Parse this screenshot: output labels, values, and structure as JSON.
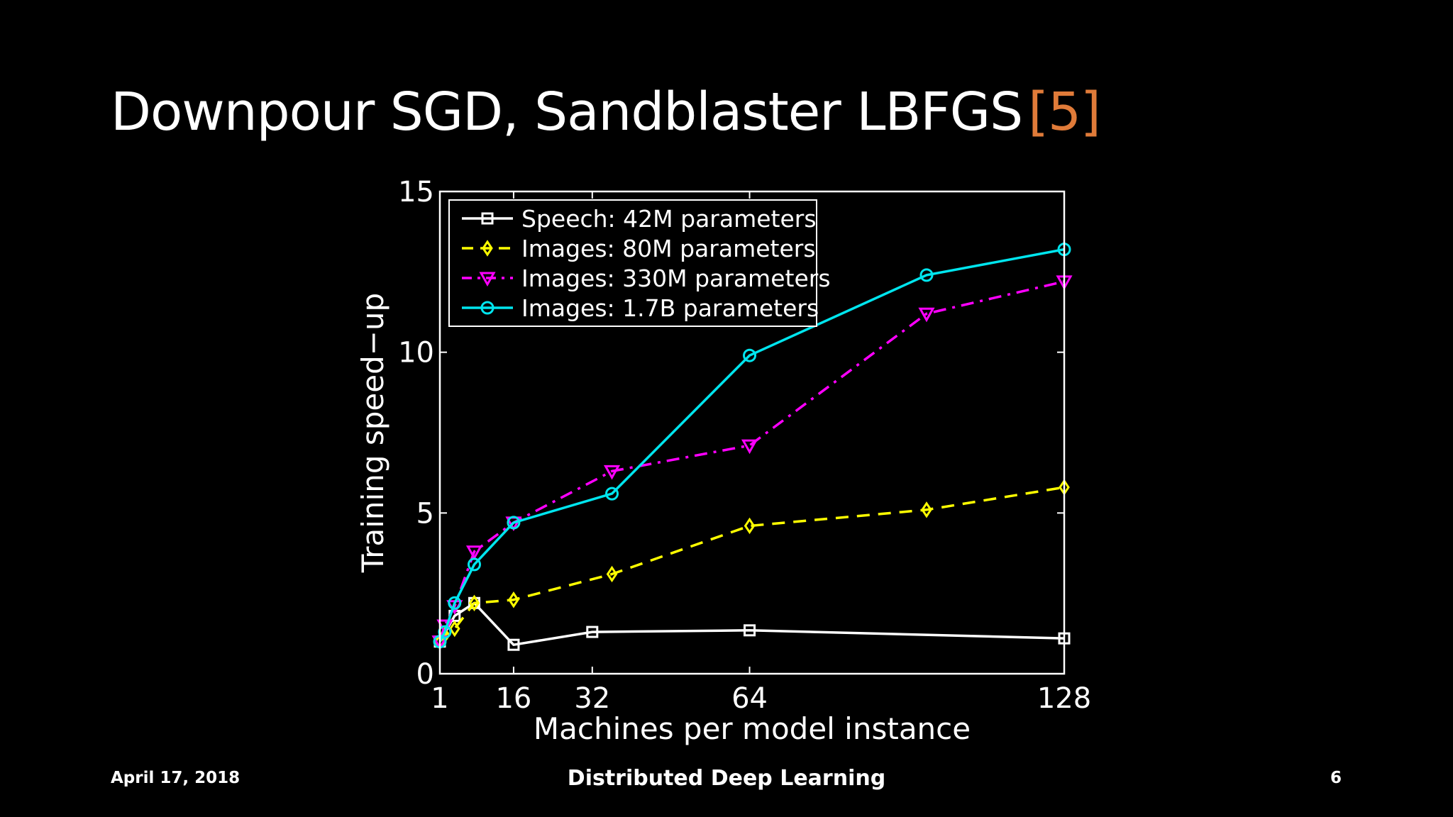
{
  "slide": {
    "title": "Downpour SGD, Sandblaster LBFGS",
    "citation": "[5]",
    "citation_color": "#e07b39",
    "footer_left": "April 17, 2018",
    "footer_center": "Distributed Deep Learning",
    "footer_right": "6"
  },
  "chart_data": {
    "type": "line",
    "title": "",
    "xlabel": "Machines per model instance",
    "ylabel": "Training speed−up",
    "xlim": [
      1,
      128
    ],
    "ylim": [
      0,
      15
    ],
    "xticks": [
      1,
      16,
      32,
      64,
      128
    ],
    "xtick_labels": [
      "1",
      "16",
      "32",
      "64",
      "128"
    ],
    "yticks": [
      0,
      5,
      10,
      15
    ],
    "ytick_labels": [
      "0",
      "5",
      "10",
      "15"
    ],
    "legend_position": "top-left",
    "background": "#000000",
    "axis_color": "#ffffff",
    "series": [
      {
        "name": "Speech: 42M parameters",
        "color": "#ffffff",
        "linestyle": "solid",
        "marker": "square",
        "x": [
          1,
          4,
          8,
          16,
          32,
          64,
          128
        ],
        "y": [
          1.0,
          1.8,
          2.2,
          0.9,
          1.3,
          1.35,
          1.1
        ]
      },
      {
        "name": "Images: 80M parameters",
        "color": "#ffff00",
        "linestyle": "dashed",
        "marker": "diamond",
        "x": [
          1,
          2,
          4,
          8,
          16,
          36,
          64,
          100,
          128
        ],
        "y": [
          1.0,
          1.2,
          1.4,
          2.2,
          2.3,
          3.1,
          4.6,
          5.1,
          5.8
        ]
      },
      {
        "name": "Images: 330M parameters",
        "color": "#ff00ff",
        "linestyle": "dashdot",
        "marker": "triangle-down",
        "x": [
          1,
          2,
          4,
          8,
          16,
          36,
          64,
          100,
          128
        ],
        "y": [
          1.0,
          1.5,
          2.1,
          3.8,
          4.7,
          6.3,
          7.1,
          11.2,
          12.2
        ]
      },
      {
        "name": "Images: 1.7B parameters",
        "color": "#00e5ee",
        "linestyle": "solid",
        "marker": "circle",
        "x": [
          1,
          2,
          4,
          8,
          16,
          36,
          64,
          100,
          128
        ],
        "y": [
          1.0,
          1.3,
          2.2,
          3.4,
          4.7,
          5.6,
          9.9,
          12.4,
          13.2
        ]
      }
    ]
  }
}
